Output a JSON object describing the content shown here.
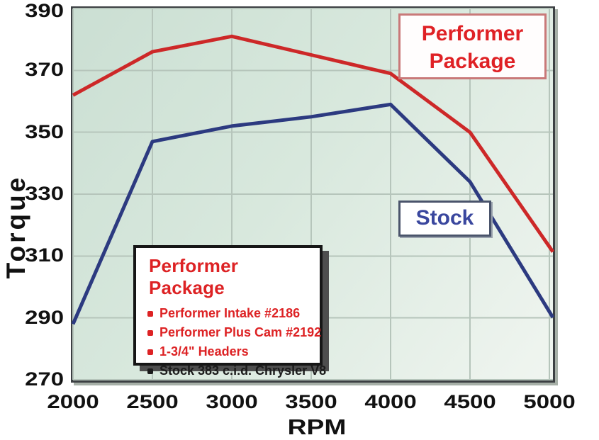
{
  "chart_data": {
    "type": "line",
    "title": "",
    "xlabel": "RPM",
    "ylabel": "Torque",
    "x": [
      2000,
      2500,
      3000,
      3500,
      4000,
      4500,
      5000
    ],
    "x_ticks": [
      2000,
      2500,
      3000,
      3500,
      4000,
      4500,
      5000
    ],
    "y_ticks": [
      270,
      290,
      310,
      330,
      350,
      370,
      390
    ],
    "xlim": [
      2000,
      5000
    ],
    "ylim": [
      270,
      390
    ],
    "grid": true,
    "legend_position": "inline-boxes",
    "series": [
      {
        "name": "Performer Package",
        "color": "#cd2828",
        "values": [
          362,
          376,
          381,
          375,
          369,
          350,
          313
        ]
      },
      {
        "name": "Stock",
        "color": "#2c3a80",
        "values": [
          288,
          347,
          352,
          355,
          359,
          334,
          292
        ]
      }
    ]
  },
  "axis": {
    "y_title": "Torque",
    "x_title": "RPM"
  },
  "legend": {
    "performer": {
      "line1": "Performer",
      "line2": "Package",
      "text_color": "#df2125",
      "border_color": "#c97979"
    },
    "stock": {
      "label": "Stock",
      "text_color": "#3a479e",
      "border_color": "#4a546b"
    }
  },
  "spec_box": {
    "title": "Performer Package",
    "title_color": "#dd2224",
    "items": [
      {
        "text": "Performer Intake #2186",
        "color": "#dd2224"
      },
      {
        "text": "Performer Plus Cam #2192",
        "color": "#dd2224"
      },
      {
        "text": "1-3/4\" Headers",
        "color": "#dd2224"
      },
      {
        "text": "Stock 383 c.i.d. Chrysler V8",
        "color": "#1c1c1c"
      }
    ]
  },
  "colors": {
    "background": "#ffffff",
    "plot_bg_start": "#cbdfd3",
    "plot_bg_end": "#f0f5f0",
    "gridline": "#b6c5bb",
    "frame": "#3c4043",
    "frame_shadow": "#a7b0a8",
    "axis_text": "#111111"
  }
}
